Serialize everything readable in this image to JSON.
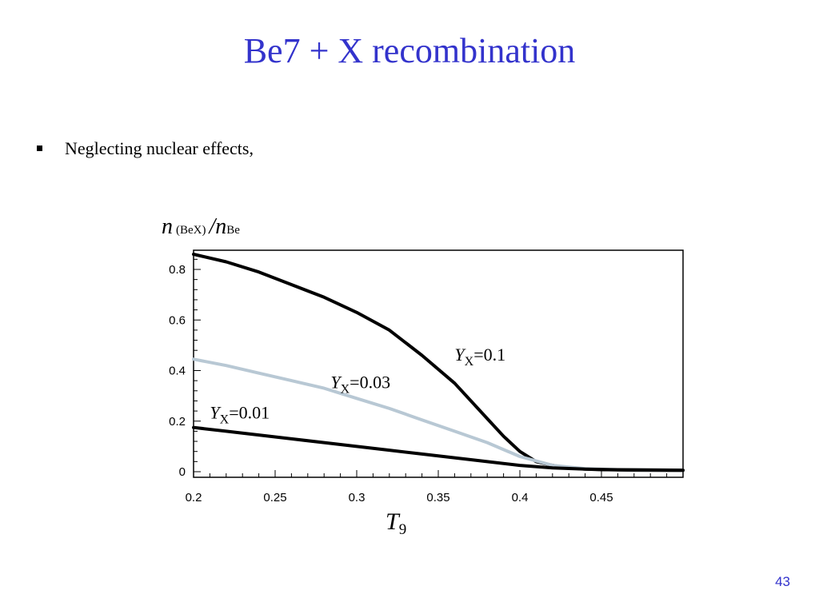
{
  "slide": {
    "title": "Be7 + X recombination",
    "bullet": "Neglecting nuclear effects,",
    "page_number": "43",
    "title_color": "#3333cc"
  },
  "chart_data": {
    "type": "line",
    "ylabel": {
      "main": "n",
      "sub": "(BeX)",
      "sep": "/",
      "main2": "n",
      "sub2": "Be"
    },
    "xlabel": {
      "main": "T",
      "sub": "9"
    },
    "xlim": [
      0.2,
      0.5
    ],
    "ylim": [
      0,
      0.85
    ],
    "xticks": [
      0.2,
      0.25,
      0.3,
      0.35,
      0.4,
      0.45
    ],
    "xtick_labels": [
      "0.2",
      "0.25",
      "0.3",
      "0.35",
      "0.4",
      "0.45"
    ],
    "yticks": [
      0,
      0.2,
      0.4,
      0.6,
      0.8
    ],
    "ytick_labels": [
      "0",
      "0.2",
      "0.4",
      "0.6",
      "0.8"
    ],
    "grid": false,
    "series": [
      {
        "name": "Y_X=0.1",
        "label_prefix": "Y",
        "label_sub": "X",
        "label_suffix": "=0.1",
        "label_at": [
          0.36,
          0.44
        ],
        "color": "#000000",
        "x": [
          0.2,
          0.22,
          0.24,
          0.26,
          0.28,
          0.3,
          0.32,
          0.34,
          0.36,
          0.38,
          0.39,
          0.4,
          0.41,
          0.42,
          0.43,
          0.44,
          0.45,
          0.47,
          0.5
        ],
        "y": [
          0.86,
          0.83,
          0.79,
          0.74,
          0.69,
          0.63,
          0.56,
          0.46,
          0.35,
          0.21,
          0.14,
          0.08,
          0.04,
          0.025,
          0.015,
          0.01,
          0.008,
          0.006,
          0.005
        ]
      },
      {
        "name": "Y_X=0.03",
        "label_prefix": "Y",
        "label_sub": "X",
        "label_suffix": "=0.03",
        "label_at": [
          0.284,
          0.33
        ],
        "color": "#b8c8d4",
        "x": [
          0.2,
          0.22,
          0.24,
          0.26,
          0.28,
          0.3,
          0.32,
          0.34,
          0.36,
          0.38,
          0.4,
          0.42,
          0.44,
          0.46,
          0.5
        ],
        "y": [
          0.445,
          0.42,
          0.39,
          0.36,
          0.33,
          0.29,
          0.25,
          0.205,
          0.16,
          0.115,
          0.06,
          0.025,
          0.012,
          0.008,
          0.006
        ]
      },
      {
        "name": "Y_X=0.01",
        "label_prefix": "Y",
        "label_sub": "X",
        "label_suffix": "=0.01",
        "label_at": [
          0.21,
          0.21
        ],
        "color": "#000000",
        "x": [
          0.2,
          0.22,
          0.24,
          0.26,
          0.28,
          0.3,
          0.32,
          0.34,
          0.36,
          0.38,
          0.4,
          0.42,
          0.44,
          0.46,
          0.5
        ],
        "y": [
          0.175,
          0.16,
          0.145,
          0.13,
          0.115,
          0.1,
          0.085,
          0.07,
          0.055,
          0.04,
          0.025,
          0.015,
          0.01,
          0.008,
          0.006
        ]
      }
    ]
  }
}
